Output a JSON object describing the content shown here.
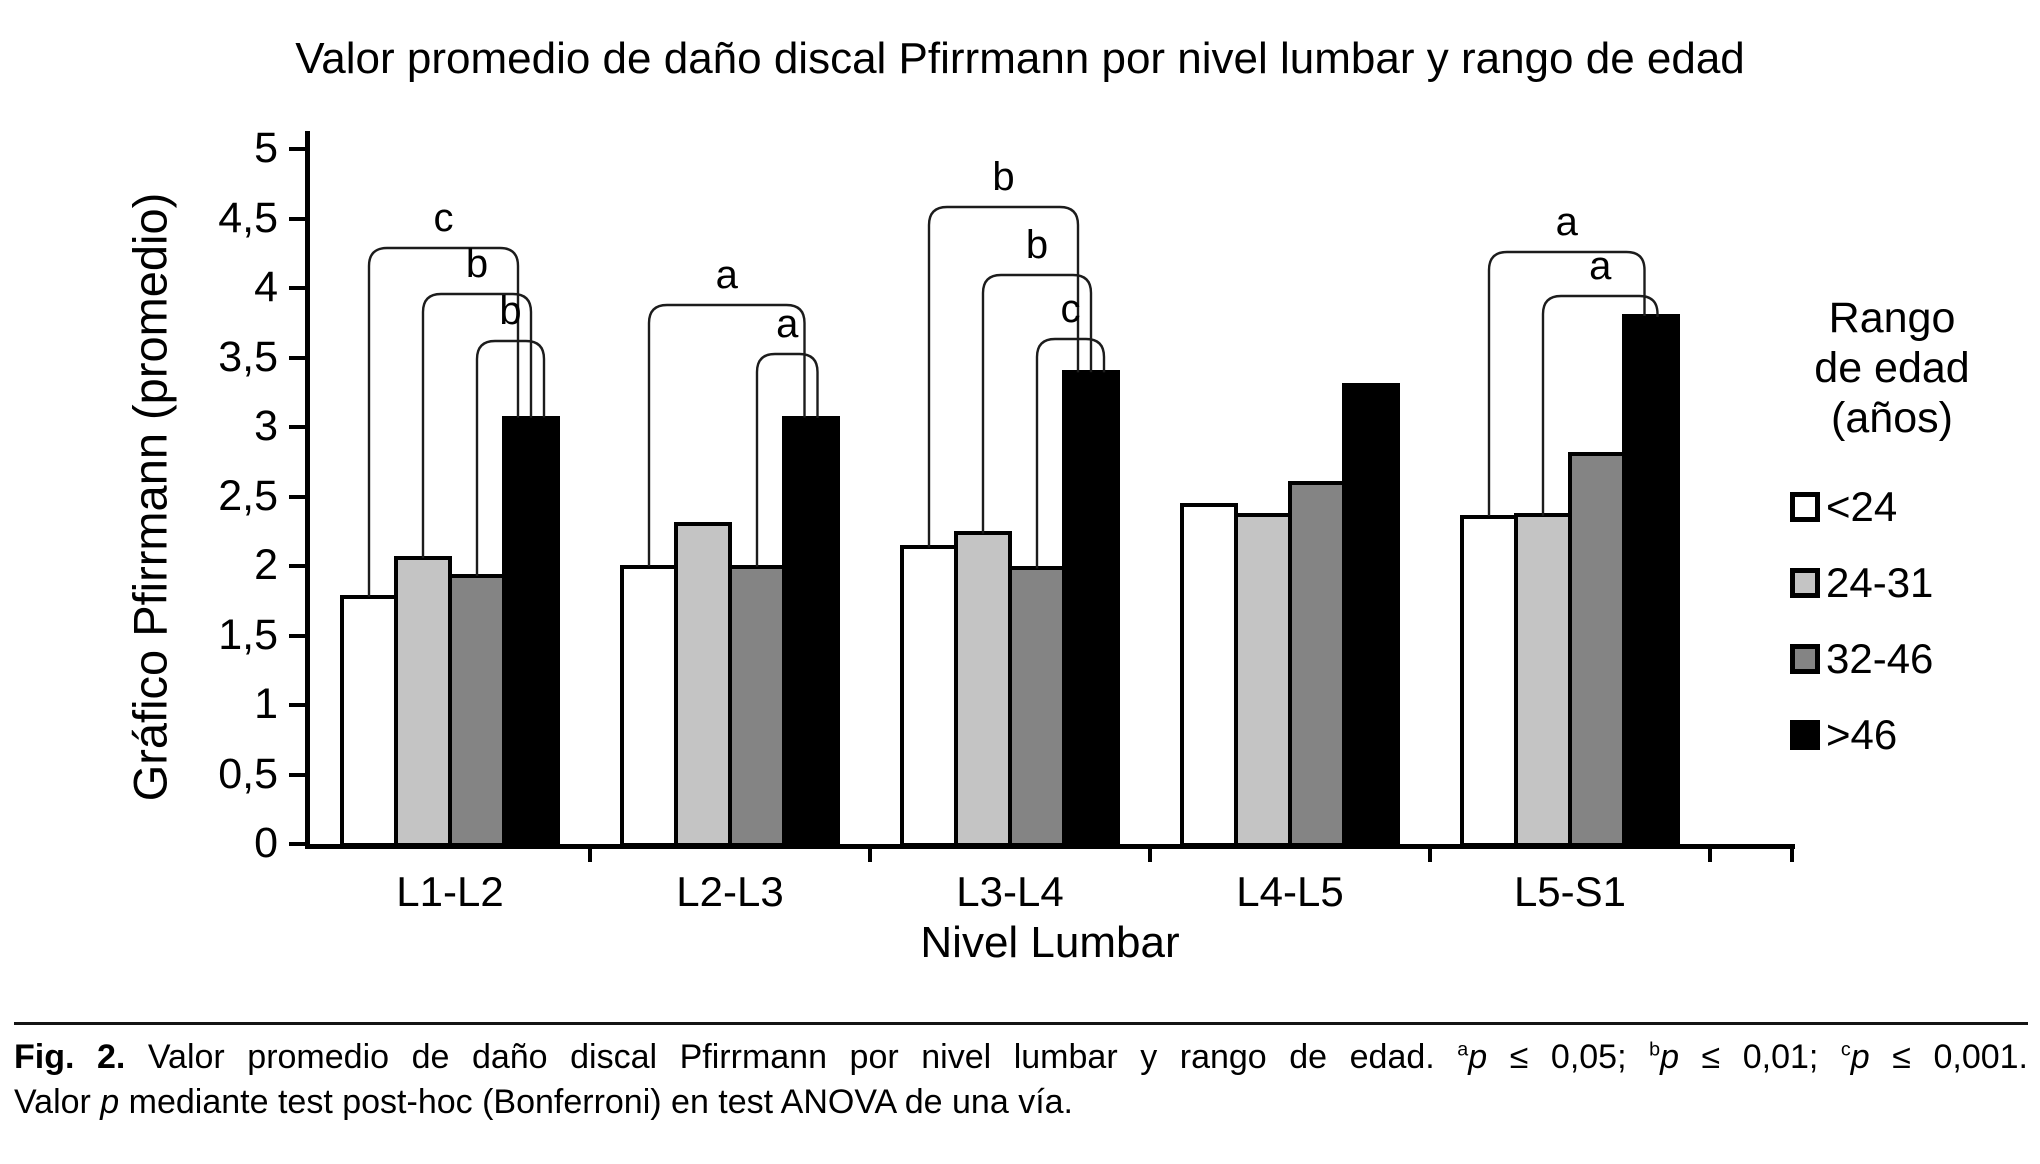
{
  "chart_data": {
    "type": "bar",
    "title": "Valor promedio de daño discal Pfirrmann por nivel lumbar y rango de edad",
    "xlabel": "Nivel Lumbar",
    "ylabel": "Gráfico Pfirrmann (promedio)",
    "ylim": [
      0,
      5
    ],
    "ytick_step": 0.5,
    "ytick_labels": [
      "0",
      "0,5",
      "1",
      "1,5",
      "2",
      "2,5",
      "3",
      "3,5",
      "4",
      "4,5",
      "5"
    ],
    "grid": false,
    "categories": [
      "L1-L2",
      "L2-L3",
      "L3-L4",
      "L4-L5",
      "L5-S1"
    ],
    "series": [
      {
        "name": "<24",
        "color": "#ffffff",
        "values": [
          1.79,
          2.01,
          2.15,
          2.45,
          2.37
        ]
      },
      {
        "name": "24-31",
        "color": "#c4c4c4",
        "values": [
          2.07,
          2.32,
          2.25,
          2.38,
          2.38
        ]
      },
      {
        "name": "32-46",
        "color": "#848484",
        "values": [
          1.94,
          2.01,
          2.0,
          2.61,
          2.82
        ]
      },
      {
        "name": ">46",
        "color": "#000000",
        "values": [
          3.08,
          3.08,
          3.41,
          3.32,
          3.81
        ]
      }
    ],
    "significance_brackets": [
      {
        "group": "L1-L2",
        "label": "c",
        "from_series": "<24",
        "to_series": ">46",
        "height": 4.3
      },
      {
        "group": "L1-L2",
        "label": "b",
        "from_series": "24-31",
        "to_series": ">46",
        "height": 3.97
      },
      {
        "group": "L1-L2",
        "label": "b",
        "from_series": "32-46",
        "to_series": ">46",
        "height": 3.63
      },
      {
        "group": "L2-L3",
        "label": "a",
        "from_series": "<24",
        "to_series": ">46",
        "height": 3.89
      },
      {
        "group": "L2-L3",
        "label": "a",
        "from_series": "32-46",
        "to_series": ">46",
        "height": 3.54
      },
      {
        "group": "L3-L4",
        "label": "b",
        "from_series": "<24",
        "to_series": ">46",
        "height": 4.6
      },
      {
        "group": "L3-L4",
        "label": "b",
        "from_series": "24-31",
        "to_series": ">46",
        "height": 4.11
      },
      {
        "group": "L3-L4",
        "label": "c",
        "from_series": "32-46",
        "to_series": ">46",
        "height": 3.65
      },
      {
        "group": "L5-S1",
        "label": "a",
        "from_series": "<24",
        "to_series": ">46",
        "height": 4.27
      },
      {
        "group": "L5-S1",
        "label": "a",
        "from_series": "24-31",
        "to_series": ">46",
        "height": 3.96
      }
    ],
    "legend": {
      "position": "right",
      "title_lines": [
        "Rango",
        "de edad",
        "(años)"
      ],
      "entries": [
        "<24",
        "24-31",
        "32-46",
        ">46"
      ]
    }
  },
  "figure": {
    "caption": {
      "line1_segments": [
        {
          "text": "Fig. 2.",
          "bold": true
        },
        {
          "text": " Valor promedio de daño discal Pfirrmann por nivel lumbar y rango de edad. "
        },
        {
          "text": "a",
          "sup": true
        },
        {
          "text": "p",
          "italic": true
        },
        {
          "text": " ≤ 0,05; "
        },
        {
          "text": "b",
          "sup": true
        },
        {
          "text": "p",
          "italic": true
        },
        {
          "text": " ≤ 0,01; "
        },
        {
          "text": "c",
          "sup": true
        },
        {
          "text": "p",
          "italic": true
        },
        {
          "text": " ≤ 0,001."
        }
      ],
      "line2_segments": [
        {
          "text": "Valor "
        },
        {
          "text": "p",
          "italic": true
        },
        {
          "text": " mediante test post-hoc (Bonferroni) en test ANOVA de una vía."
        }
      ]
    }
  }
}
